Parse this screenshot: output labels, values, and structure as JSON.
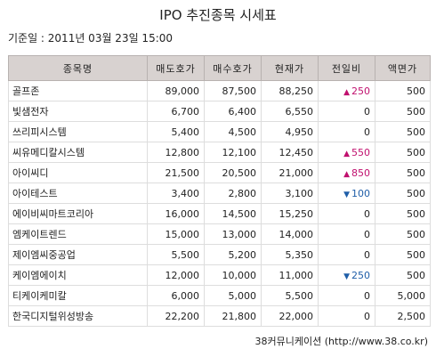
{
  "title": "IPO 추진종목 시세표",
  "basis": "기준일 : 2011년 03월 23일 15:00",
  "headers": [
    "종목명",
    "매도호가",
    "매수호가",
    "현재가",
    "전일비",
    "액면가"
  ],
  "rows": [
    {
      "name": "골프존",
      "ask": "89,000",
      "bid": "87,500",
      "price": "88,250",
      "change": "250",
      "direction": "up",
      "par": "500"
    },
    {
      "name": "빛샘전자",
      "ask": "6,700",
      "bid": "6,400",
      "price": "6,550",
      "change": "0",
      "direction": "none",
      "par": "500"
    },
    {
      "name": "쓰리피시스템",
      "ask": "5,400",
      "bid": "4,500",
      "price": "4,950",
      "change": "0",
      "direction": "none",
      "par": "500"
    },
    {
      "name": "씨유메디칼시스템",
      "ask": "12,800",
      "bid": "12,100",
      "price": "12,450",
      "change": "550",
      "direction": "up",
      "par": "500"
    },
    {
      "name": "아이씨디",
      "ask": "21,500",
      "bid": "20,500",
      "price": "21,000",
      "change": "850",
      "direction": "up",
      "par": "500"
    },
    {
      "name": "아이테스트",
      "ask": "3,400",
      "bid": "2,800",
      "price": "3,100",
      "change": "100",
      "direction": "down",
      "par": "500"
    },
    {
      "name": "에이비씨마트코리아",
      "ask": "16,000",
      "bid": "14,500",
      "price": "15,250",
      "change": "0",
      "direction": "none",
      "par": "500"
    },
    {
      "name": "엠케이트렌드",
      "ask": "15,000",
      "bid": "13,000",
      "price": "14,000",
      "change": "0",
      "direction": "none",
      "par": "500"
    },
    {
      "name": "제이엠씨중공업",
      "ask": "5,500",
      "bid": "5,200",
      "price": "5,350",
      "change": "0",
      "direction": "none",
      "par": "500"
    },
    {
      "name": "케이엠에이치",
      "ask": "12,000",
      "bid": "10,000",
      "price": "11,000",
      "change": "250",
      "direction": "down",
      "par": "500"
    },
    {
      "name": "티케이케미칼",
      "ask": "6,000",
      "bid": "5,000",
      "price": "5,500",
      "change": "0",
      "direction": "none",
      "par": "5,000"
    },
    {
      "name": "한국디지털위성방송",
      "ask": "22,200",
      "bid": "21,800",
      "price": "22,000",
      "change": "0",
      "direction": "none",
      "par": "2,500"
    }
  ],
  "arrows": {
    "up": "▲",
    "down": "▼"
  },
  "colors": {
    "up": "#c0106e",
    "down": "#1f5ea8",
    "header_bg": "#d8d2d0"
  },
  "source": "38커뮤니케이션 (http://www.38.co.kr)"
}
